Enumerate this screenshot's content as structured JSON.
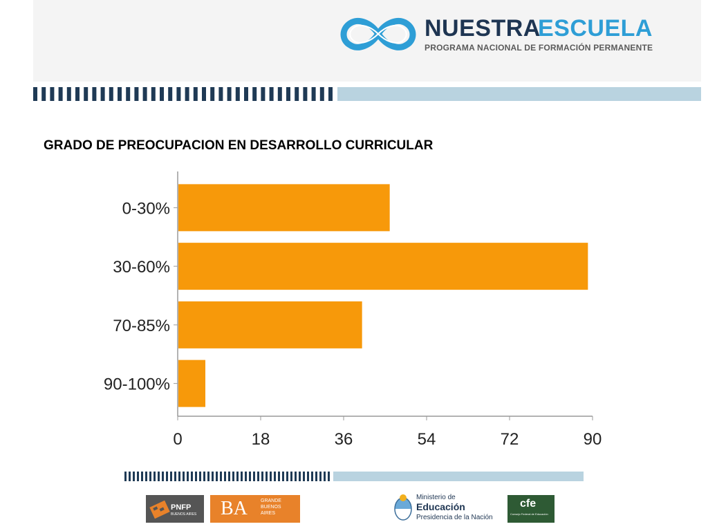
{
  "header": {
    "brand_word1": "NUESTRA",
    "brand_word2": "ESCUELA",
    "brand_subtitle": "PROGRAMA NACIONAL DE FORMACIÓN PERMANENTE",
    "brand_icon": "infinity-icon"
  },
  "chart_data": {
    "type": "bar",
    "orientation": "horizontal",
    "title": "GRADO DE PREOCUPACION EN  DESARROLLO CURRICULAR",
    "categories": [
      "0-30%",
      "30-60%",
      "70-85%",
      "90-100%"
    ],
    "values": [
      46,
      89,
      40,
      6
    ],
    "xticks": [
      0,
      18,
      36,
      54,
      72,
      90
    ],
    "xlim": [
      0,
      90
    ],
    "xlabel": "",
    "ylabel": "",
    "bar_color": "#f7990a",
    "grid": false,
    "legend": "none"
  },
  "footer": {
    "logo1_text": "PNFP",
    "logo1_sub": "BUENOS AIRES",
    "logo2_text": "BA",
    "logo2_sub1": "GRANDE",
    "logo2_sub2": "BUENOS",
    "logo2_sub3": "AIRES",
    "logo3_line1": "Ministerio de",
    "logo3_line2": "Educación",
    "logo3_line3": "Presidencia de la Nación",
    "logo4_text": "cfe",
    "logo4_sub": "Consejo Federal de Educación"
  },
  "colors": {
    "accent_dark": "#1e3552",
    "accent_blue": "#2e9ed6",
    "stripe_light": "#b9d3e0",
    "stripe_dark": "#1f3a55"
  }
}
